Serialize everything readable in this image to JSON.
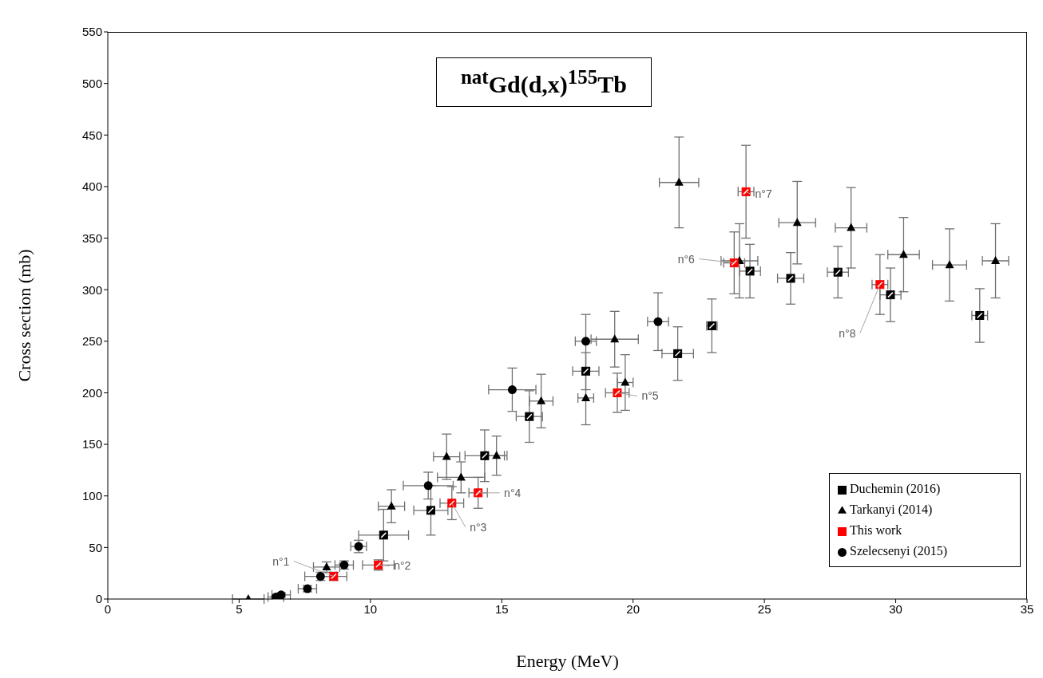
{
  "chart_data": {
    "type": "scatter",
    "title": "$^{nat}$Gd(d,x)$^{155}$Tb",
    "xlabel": "Energy  (MeV)",
    "ylabel": "Cross section (mb)",
    "xlim": [
      0,
      35
    ],
    "xticks": [
      0,
      5,
      10,
      15,
      20,
      25,
      30,
      35
    ],
    "ylim": [
      0,
      550
    ],
    "yticks": [
      0,
      50,
      100,
      150,
      200,
      250,
      300,
      350,
      400,
      450,
      500,
      550
    ],
    "grid": false,
    "legend": "bottom right",
    "series": [
      {
        "name": "Duchemin (2016)",
        "color": "#000000",
        "marker": "square",
        "x": [
          10.5,
          12.3,
          14.35,
          16.05,
          18.2,
          21.7,
          23.0,
          24.45,
          26.0,
          27.8,
          29.8,
          33.2
        ],
        "values": [
          62,
          86,
          139,
          177,
          221,
          238,
          265,
          318,
          311,
          317,
          295,
          275
        ],
        "errors": [
          25,
          24,
          25,
          25,
          18,
          26,
          26,
          26,
          25,
          25,
          26,
          26
        ],
        "xerrors": [
          0.95,
          0.65,
          0.75,
          0.5,
          0.5,
          0.6,
          0.2,
          0.4,
          0.5,
          0.4,
          0.4,
          0.3
        ]
      },
      {
        "name": "Tarkanyi (2014)",
        "color": "#000000",
        "marker": "triangle",
        "x": [
          5.35,
          8.33,
          10.8,
          12.9,
          13.45,
          14.8,
          16.5,
          18.2,
          19.3,
          19.7,
          21.75,
          24.05,
          26.25,
          28.3,
          30.3,
          32.05,
          33.8
        ],
        "values": [
          0,
          31,
          90,
          138,
          118,
          139,
          192,
          195,
          252,
          210,
          404,
          328,
          365,
          360,
          334,
          324,
          328
        ],
        "errors": [
          null,
          5,
          16,
          22,
          15,
          19,
          26,
          26,
          27,
          27,
          44,
          36,
          40,
          39,
          36,
          35,
          36
        ],
        "xerrors": [
          0.6,
          0.5,
          0.5,
          0.5,
          0.9,
          0.4,
          0.45,
          0.3,
          0.9,
          0.3,
          0.75,
          0.7,
          0.7,
          0.6,
          0.6,
          0.65,
          0.5
        ]
      },
      {
        "name": "This work",
        "color": "#ff0000",
        "marker": "square",
        "x": [
          8.6,
          10.3,
          13.1,
          14.1,
          19.4,
          23.85,
          24.3,
          29.4
        ],
        "values": [
          22,
          33,
          93,
          103,
          200,
          326,
          395,
          305
        ],
        "errors": [
          4,
          5,
          16,
          15,
          19,
          30,
          45,
          29
        ],
        "xerrors": [
          0.5,
          0.6,
          0.45,
          0.35,
          0.45,
          0.4,
          0.3,
          0.3
        ]
      },
      {
        "name": "Szelecsenyi (2015)",
        "color": "#000000",
        "marker": "circle",
        "x": [
          6.4,
          6.6,
          7.6,
          8.1,
          9.0,
          9.55,
          12.2,
          15.4,
          18.2,
          20.95
        ],
        "values": [
          2,
          4,
          10,
          22,
          33,
          51,
          110,
          203,
          250,
          269
        ],
        "errors": [
          1,
          2,
          3,
          4,
          4,
          6,
          13,
          21,
          26,
          28
        ],
        "xerrors": [
          0.3,
          0.35,
          0.35,
          0.6,
          0.35,
          0.3,
          0.95,
          0.9,
          0.4,
          0.4
        ]
      }
    ],
    "annotations": [
      {
        "text": "n°1",
        "x": 8.6,
        "y": 22
      },
      {
        "text": "n°2",
        "x": 10.3,
        "y": 33
      },
      {
        "text": "n°3",
        "x": 13.1,
        "y": 93
      },
      {
        "text": "n°4",
        "x": 14.1,
        "y": 103
      },
      {
        "text": "n°5",
        "x": 19.4,
        "y": 200
      },
      {
        "text": "n°6",
        "x": 23.85,
        "y": 326
      },
      {
        "text": "n°7",
        "x": 24.3,
        "y": 395
      },
      {
        "text": "n°8",
        "x": 29.4,
        "y": 305
      }
    ]
  }
}
